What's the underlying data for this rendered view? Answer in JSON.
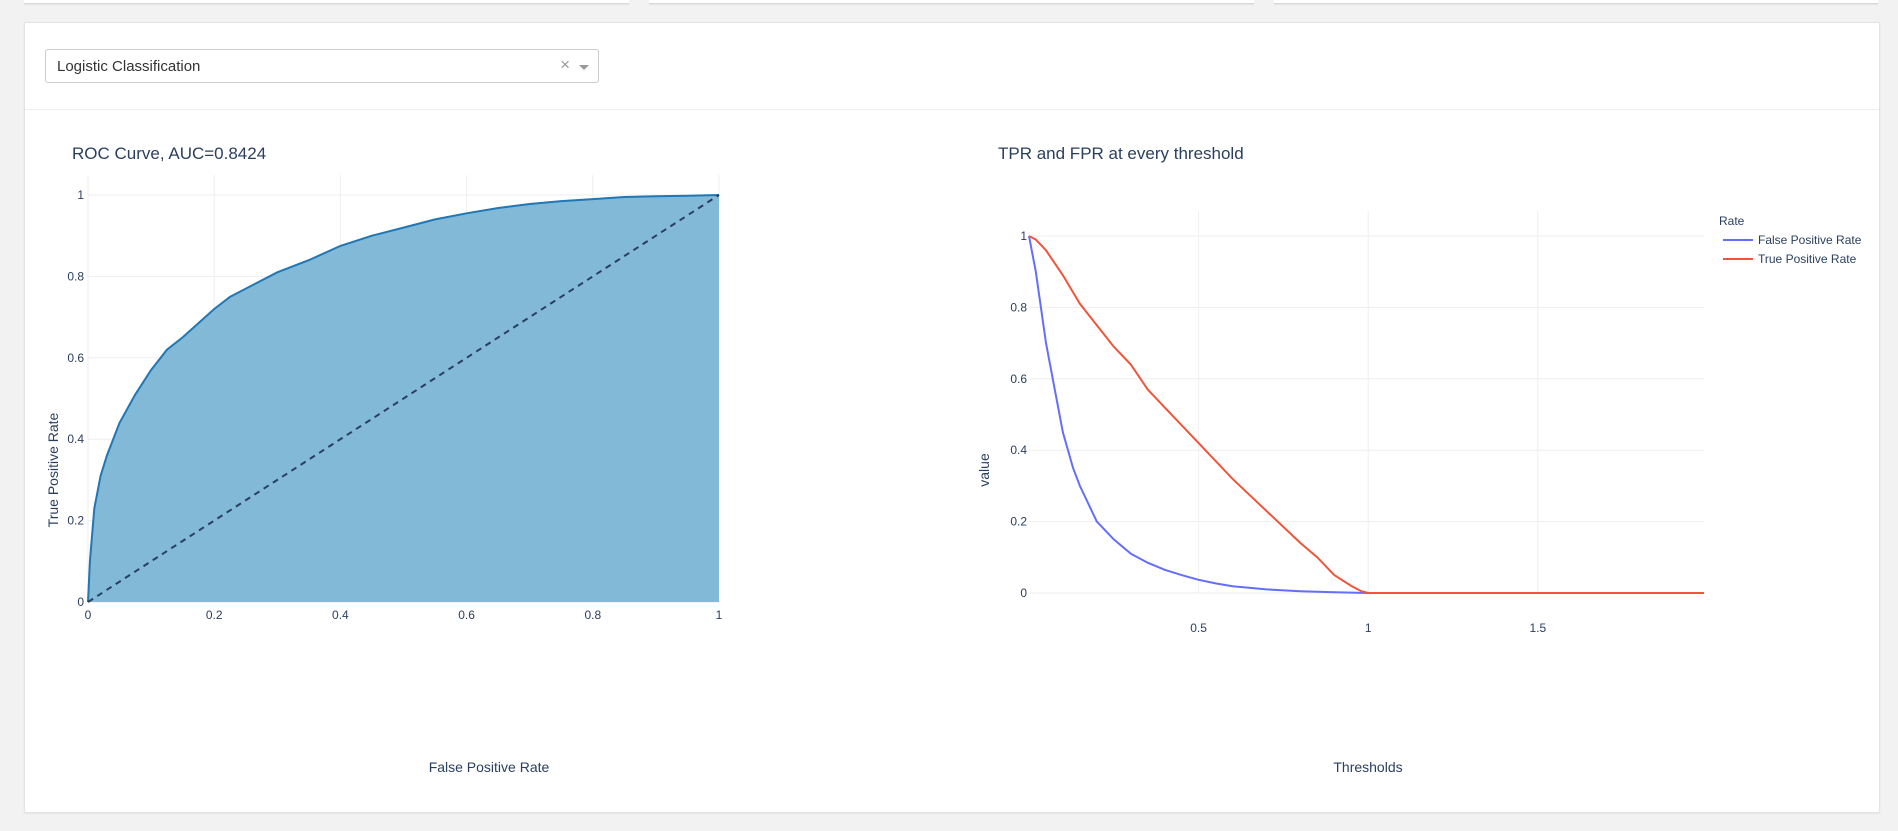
{
  "dropdown": {
    "selected": "Logistic Classification",
    "clear_symbol": "×"
  },
  "colors": {
    "roc_fill": "#82b9d7",
    "roc_line": "#1f77b4",
    "diagonal": "#2a3f5f",
    "fpr_line": "#636efa",
    "tpr_line": "#ef553b"
  },
  "chart_data": [
    {
      "type": "area",
      "title": "ROC Curve, AUC=0.8424",
      "xlabel": "False Positive Rate",
      "ylabel": "True Positive Rate",
      "xlim": [
        0,
        1
      ],
      "ylim": [
        0,
        1
      ],
      "grid": true,
      "x_ticks": [
        "0",
        "0.2",
        "0.4",
        "0.6",
        "0.8",
        "1"
      ],
      "y_ticks": [
        "0",
        "0.2",
        "0.4",
        "0.6",
        "0.8",
        "1"
      ],
      "series": [
        {
          "x": [
            0,
            0.003,
            0.01,
            0.02,
            0.03,
            0.05,
            0.075,
            0.1,
            0.125,
            0.15,
            0.2,
            0.225,
            0.25,
            0.3,
            0.35,
            0.4,
            0.45,
            0.5,
            0.55,
            0.6,
            0.65,
            0.7,
            0.75,
            0.8,
            0.85,
            0.9,
            0.95,
            1.0
          ],
          "y": [
            0,
            0.1,
            0.23,
            0.31,
            0.36,
            0.44,
            0.51,
            0.57,
            0.62,
            0.65,
            0.72,
            0.75,
            0.77,
            0.81,
            0.84,
            0.875,
            0.9,
            0.92,
            0.94,
            0.955,
            0.968,
            0.978,
            0.985,
            0.99,
            0.995,
            0.997,
            0.998,
            1.0
          ]
        }
      ],
      "diagonal": {
        "x": [
          0,
          1
        ],
        "y": [
          0,
          1
        ],
        "style": "dashed"
      }
    },
    {
      "type": "line",
      "title": "TPR and FPR at every threshold",
      "xlabel": "Thresholds",
      "ylabel": "value",
      "xlim": [
        0,
        1.99
      ],
      "ylim": [
        0,
        1
      ],
      "grid": true,
      "x_ticks": [
        "0.5",
        "1",
        "1.5"
      ],
      "y_ticks": [
        "0",
        "0.2",
        "0.4",
        "0.6",
        "0.8",
        "1"
      ],
      "legend_title": "Rate",
      "legend_position": "top-right",
      "series": [
        {
          "name": "False Positive Rate",
          "x": [
            0.0,
            0.02,
            0.05,
            0.08,
            0.1,
            0.13,
            0.15,
            0.2,
            0.25,
            0.3,
            0.35,
            0.4,
            0.45,
            0.5,
            0.55,
            0.6,
            0.7,
            0.8,
            0.9,
            0.95,
            1.0,
            1.99
          ],
          "y": [
            1.0,
            0.9,
            0.7,
            0.55,
            0.45,
            0.35,
            0.3,
            0.2,
            0.15,
            0.11,
            0.085,
            0.065,
            0.05,
            0.037,
            0.027,
            0.019,
            0.01,
            0.005,
            0.002,
            0.001,
            0.0,
            0.0
          ]
        },
        {
          "name": "True Positive Rate",
          "x": [
            0.0,
            0.02,
            0.05,
            0.1,
            0.15,
            0.2,
            0.25,
            0.3,
            0.35,
            0.4,
            0.5,
            0.6,
            0.7,
            0.8,
            0.85,
            0.9,
            0.95,
            0.98,
            1.0,
            1.99
          ],
          "y": [
            1.0,
            0.99,
            0.96,
            0.89,
            0.81,
            0.75,
            0.69,
            0.64,
            0.57,
            0.52,
            0.42,
            0.32,
            0.23,
            0.14,
            0.1,
            0.05,
            0.02,
            0.005,
            0.0,
            0.0
          ]
        }
      ]
    }
  ]
}
